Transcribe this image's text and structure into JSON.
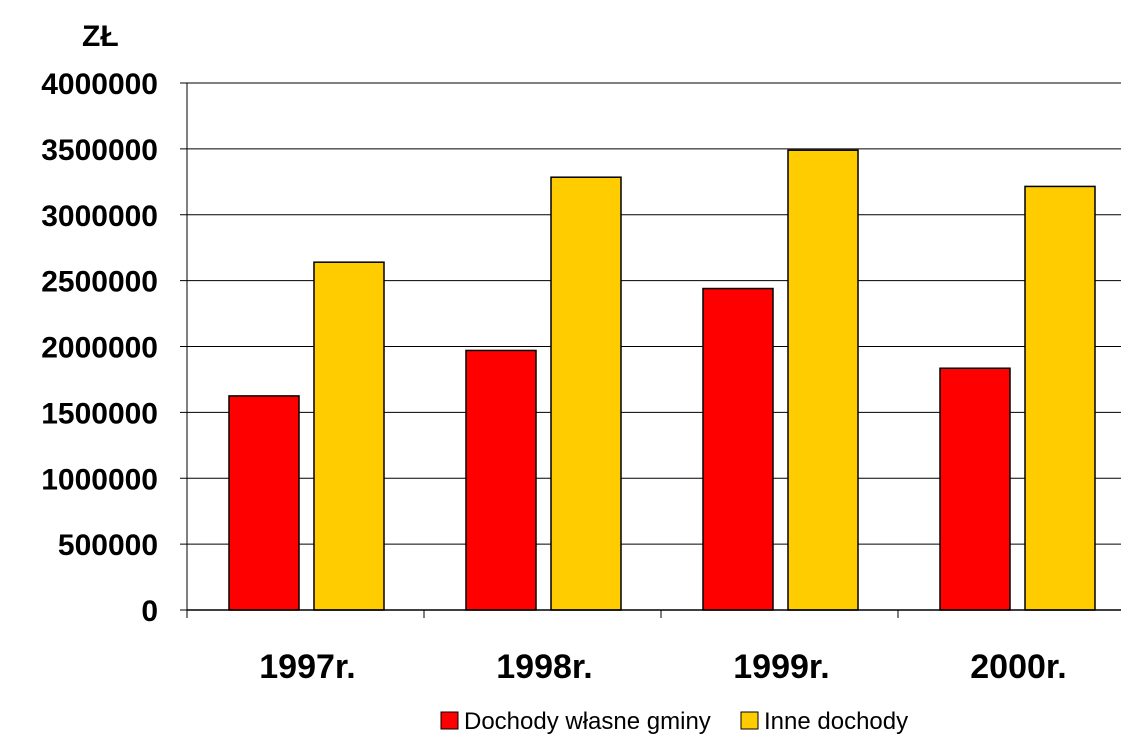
{
  "chart_data": {
    "type": "bar",
    "ylabel": "ZŁ",
    "categories": [
      "1997r.",
      "1998r.",
      "1999r.",
      "2000r."
    ],
    "series": [
      {
        "name": "Dochody własne gminy",
        "color": "#ff0000",
        "values": [
          1625000,
          1970000,
          2440000,
          1835000
        ]
      },
      {
        "name": "Inne dochody",
        "color": "#ffcc00",
        "values": [
          2640000,
          3285000,
          3490000,
          3215000
        ]
      }
    ],
    "ylim": [
      0,
      4000000
    ],
    "yticks": [
      "0",
      "500000",
      "1000000",
      "1500000",
      "2000000",
      "2500000",
      "3000000",
      "3500000",
      "4000000"
    ],
    "grid": true,
    "legend_position": "bottom"
  }
}
